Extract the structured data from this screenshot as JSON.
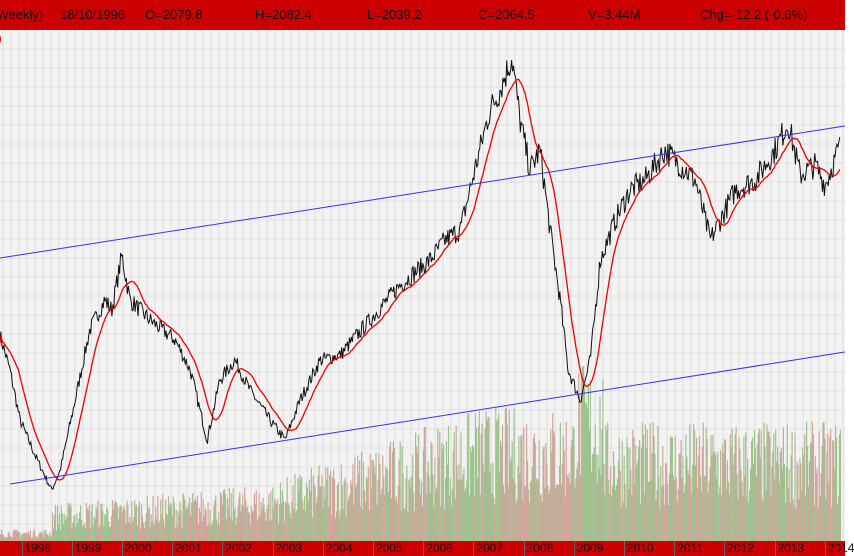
{
  "header": {
    "period": "(Weekly)",
    "date": "18/10/1996",
    "open": "O=2079.8",
    "high": "H=2082.4",
    "low": "L=2039.2",
    "close": "C=2064.5",
    "volume": "V=3.44M",
    "change": "Chg=-12.2 (-0.6%)"
  },
  "legend_fragment": ")",
  "colors": {
    "header_bg": "#cc0000",
    "price": "#111111",
    "moving_average": "#ee0000",
    "channel": "#3333ee",
    "volume_up": "#9ec28e",
    "volume_down": "#d4a49c",
    "plot_bg": "#f3f3f3",
    "grid": "#dcdcdc"
  },
  "chart_data": {
    "type": "line",
    "grid": true,
    "x_tick_labels": [
      "1998",
      "1999",
      "2000",
      "2001",
      "2002",
      "2003",
      "2004",
      "2005",
      "2006",
      "2007",
      "2008",
      "2009",
      "2010",
      "2011",
      "2012",
      "2013",
      "2014"
    ],
    "xlim": [
      1997.57,
      2014.4
    ],
    "ylim": [
      435,
      4308
    ],
    "series": [
      {
        "kind": "price",
        "x": [
          1997.57,
          1997.77,
          1997.97,
          1998.27,
          1998.6,
          1998.77,
          1999.07,
          1999.36,
          1999.66,
          1999.8,
          2000.0,
          2000.16,
          2000.56,
          2001.06,
          2001.36,
          2001.7,
          2001.95,
          2002.25,
          2002.55,
          2002.95,
          2003.25,
          2003.55,
          2003.95,
          2004.35,
          2004.94,
          2005.54,
          2006.14,
          2006.44,
          2006.74,
          2007.03,
          2007.33,
          2007.53,
          2007.77,
          2007.93,
          2008.13,
          2008.33,
          2008.53,
          2008.73,
          2008.89,
          2009.13,
          2009.33,
          2009.53,
          2009.83,
          2010.12,
          2010.42,
          2010.82,
          2011.12,
          2011.42,
          2011.72,
          2011.92,
          2012.22,
          2012.62,
          2013.01,
          2013.27,
          2013.51,
          2013.81,
          2014.01,
          2014.31
        ],
        "y": [
          1910,
          1660,
          1300,
          1050,
          800,
          940,
          1444,
          1946,
          2160,
          2090,
          2480,
          2160,
          2017,
          1874,
          1660,
          1158,
          1588,
          1730,
          1516,
          1300,
          1158,
          1444,
          1730,
          1767,
          2017,
          2268,
          2447,
          2590,
          2662,
          3091,
          3520,
          3664,
          3900,
          3449,
          3091,
          3234,
          2662,
          2160,
          1660,
          1444,
          1730,
          2447,
          2733,
          2948,
          3020,
          3234,
          3127,
          3020,
          2590,
          2733,
          2948,
          3020,
          3234,
          3435,
          3055,
          3127,
          2984,
          3270
        ]
      },
      {
        "kind": "moving_average"
      }
    ],
    "trendlines": [
      {
        "x": [
          1997.57,
          2014.4
        ],
        "y": [
          2461,
          3406
        ]
      },
      {
        "x": [
          1997.77,
          2014.4
        ],
        "y": [
          843,
          1788
        ]
      }
    ]
  }
}
